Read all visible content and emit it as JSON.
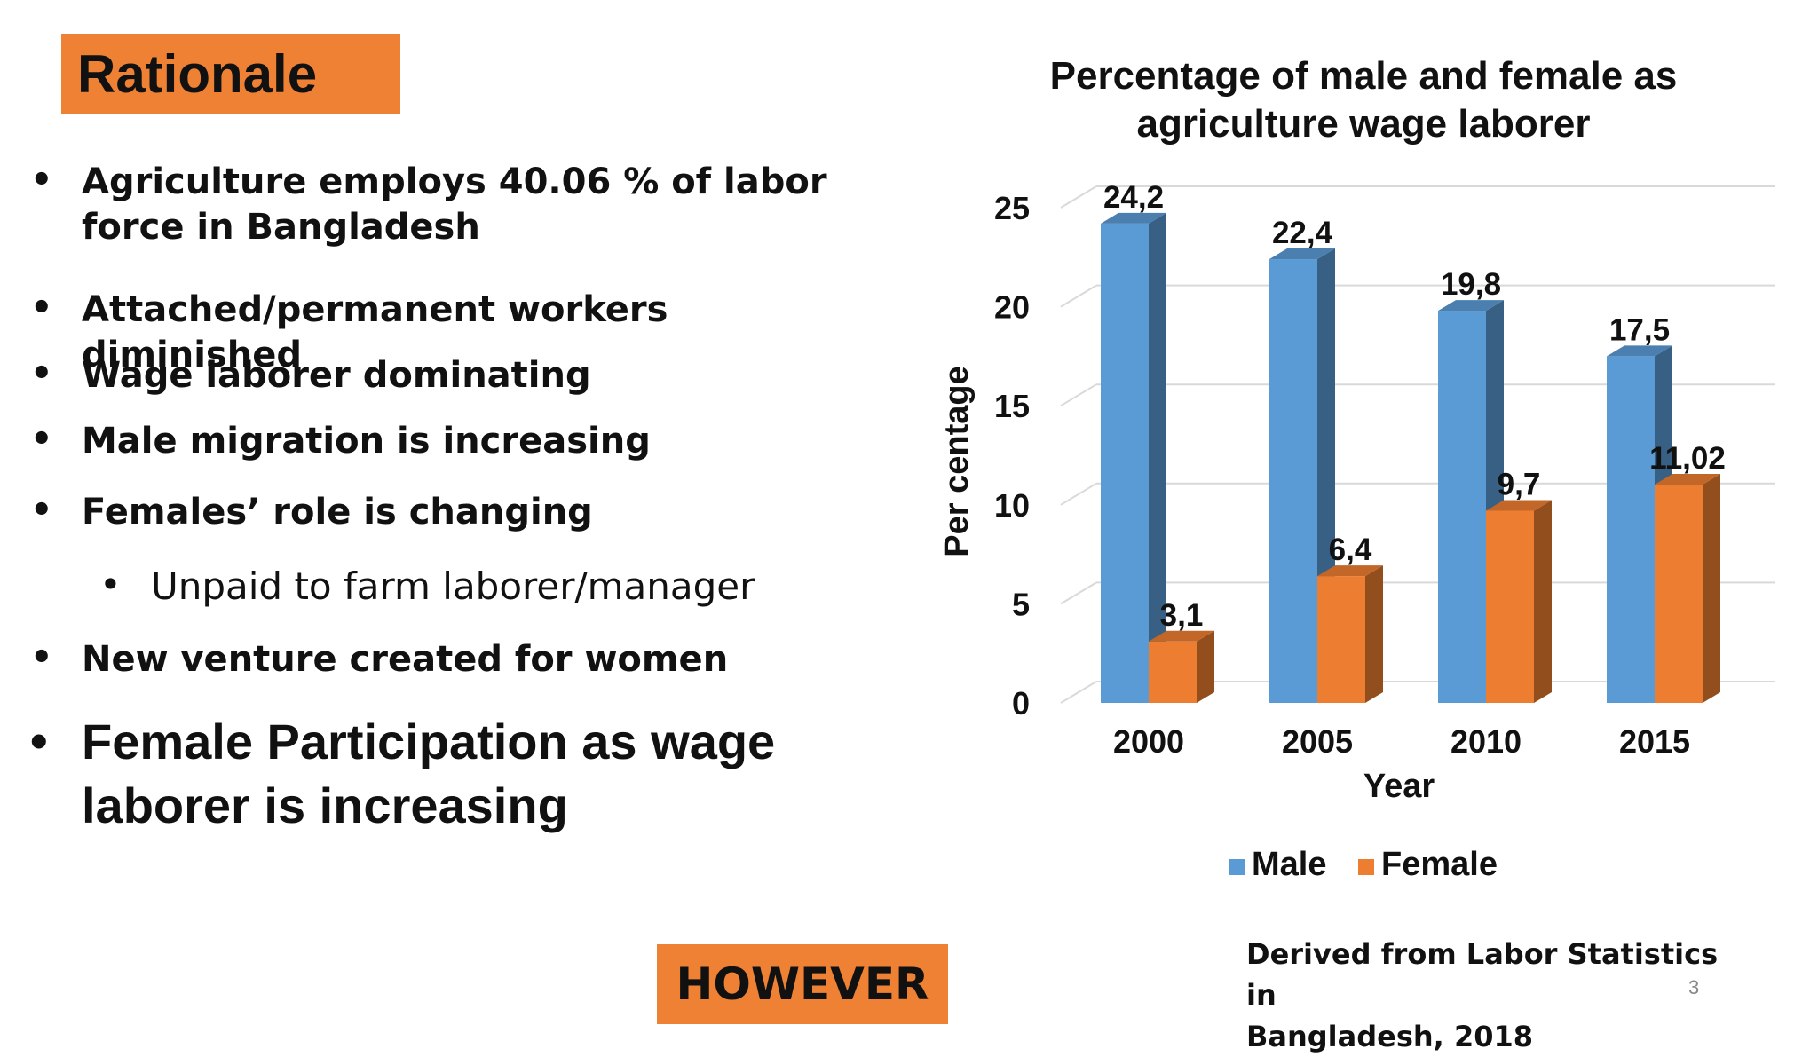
{
  "slide": {
    "heading": "Rationale",
    "however_label": "HOWEVER",
    "source_line1": "Derived from Labor Statistics in",
    "source_line2": "Bangladesh, 2018",
    "page_number": "3"
  },
  "bullets": [
    {
      "text": "Agriculture employs 40.06 % of labor force in Bangladesh",
      "style": "md"
    },
    {
      "text": "Attached/permanent workers diminished",
      "style": "md"
    },
    {
      "text": "Wage laborer dominating",
      "style": "md"
    },
    {
      "text": "Male migration is increasing",
      "style": "md"
    },
    {
      "text": "Females’ role is changing",
      "style": "md"
    },
    {
      "text": "Unpaid to farm laborer/manager",
      "style": "sub"
    },
    {
      "text": "New venture created for women",
      "style": "md"
    },
    {
      "text": "Female Participation as wage laborer is increasing",
      "style": "lg"
    }
  ],
  "colors": {
    "accent": "#ee8134",
    "male": "#5b9bd5",
    "female": "#ed7d31"
  },
  "chart_data": {
    "type": "bar",
    "title_line1": "Percentage of male and female as",
    "title_line2": "agriculture wage laborer",
    "xlabel": "Year",
    "ylabel": "Per centage",
    "categories": [
      "2000",
      "2005",
      "2010",
      "2015"
    ],
    "ylim": [
      0,
      25
    ],
    "yticks": [
      "0",
      "5",
      "10",
      "15",
      "20",
      "25"
    ],
    "grid": true,
    "legend_position": "bottom",
    "series": [
      {
        "name": "Male",
        "values": [
          24.2,
          22.4,
          19.8,
          17.5
        ],
        "labels": [
          "24,2",
          "22,4",
          "19,8",
          "17,5"
        ]
      },
      {
        "name": "Female",
        "values": [
          3.1,
          6.4,
          9.7,
          11.02
        ],
        "labels": [
          "3,1",
          "6,4",
          "9,7",
          "11,02"
        ]
      }
    ]
  }
}
